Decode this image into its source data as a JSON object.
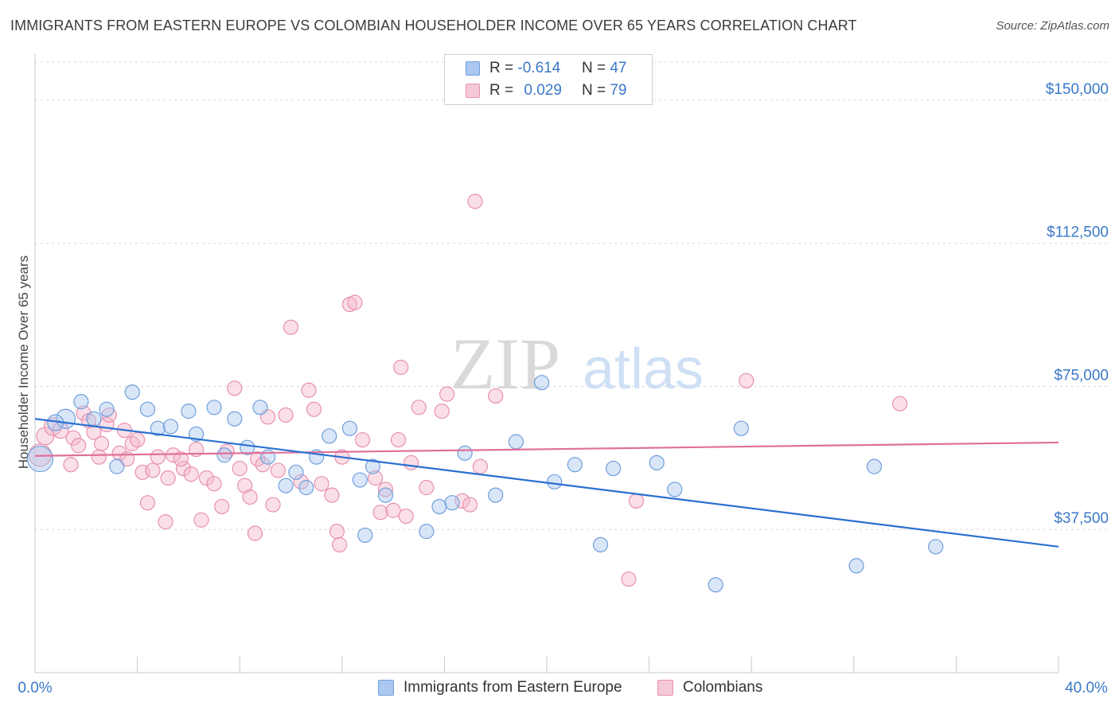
{
  "title": "IMMIGRANTS FROM EASTERN EUROPE VS COLOMBIAN HOUSEHOLDER INCOME OVER 65 YEARS CORRELATION CHART",
  "source": "Source: ZipAtlas.com",
  "watermark": {
    "zip": "ZIP",
    "atlas": "atlas"
  },
  "legend": {
    "rows": [
      {
        "r_label": "R =",
        "r_value": "-0.614",
        "n_label": "N =",
        "n_value": "47"
      },
      {
        "r_label": "R =",
        "r_value": "0.029",
        "n_label": "N =",
        "n_value": "79"
      }
    ]
  },
  "bottom_legend": {
    "series1": "Immigrants from Eastern Europe",
    "series2": "Colombians"
  },
  "colors": {
    "blue_fill": "#aac8f0",
    "blue_stroke": "#6f9fdc",
    "blue_line": "#2a6fd0",
    "pink_fill": "#f5b8cc",
    "pink_stroke": "#e890ae",
    "pink_line": "#e0709a",
    "tick_label": "#3a78c8"
  },
  "chart_data": {
    "type": "scatter",
    "title": "IMMIGRANTS FROM EASTERN EUROPE VS COLOMBIAN HOUSEHOLDER INCOME OVER 65 YEARS CORRELATION CHART",
    "xlabel": "",
    "ylabel": "Householder Income Over 65 years",
    "xlim": [
      0,
      40
    ],
    "ylim": [
      0,
      160000
    ],
    "x_tick_labels": [
      "0.0%",
      "40.0%"
    ],
    "y_ticks": [
      37500,
      75000,
      112500,
      150000
    ],
    "y_tick_labels": [
      "$37,500",
      "$75,000",
      "$112,500",
      "$150,000"
    ],
    "grid": "horizontal-dashed",
    "legend_position": "top-center",
    "series": [
      {
        "name": "Immigrants from Eastern Europe",
        "R": -0.614,
        "N": 47,
        "trend": {
          "x": [
            0,
            40
          ],
          "y": [
            66500,
            33000
          ]
        },
        "points": [
          [
            0.2,
            56000,
            16
          ],
          [
            1.2,
            66500,
            12
          ],
          [
            0.8,
            65500,
            10
          ],
          [
            1.8,
            71000,
            9
          ],
          [
            2.8,
            69000,
            9
          ],
          [
            2.3,
            66500,
            9
          ],
          [
            3.8,
            73500,
            9
          ],
          [
            4.4,
            69000,
            9
          ],
          [
            4.8,
            64000,
            9
          ],
          [
            5.3,
            64500,
            9
          ],
          [
            6.0,
            68500,
            9
          ],
          [
            6.3,
            62500,
            9
          ],
          [
            7.0,
            69500,
            9
          ],
          [
            7.8,
            66500,
            9
          ],
          [
            8.3,
            59000,
            9
          ],
          [
            8.8,
            69500,
            9
          ],
          [
            3.2,
            54000,
            9
          ],
          [
            7.4,
            57000,
            9
          ],
          [
            9.1,
            56500,
            9
          ],
          [
            9.8,
            49000,
            9
          ],
          [
            10.2,
            52500,
            9
          ],
          [
            10.6,
            48500,
            9
          ],
          [
            11.0,
            56500,
            9
          ],
          [
            11.5,
            62000,
            9
          ],
          [
            12.3,
            64000,
            9
          ],
          [
            12.7,
            50500,
            9
          ],
          [
            13.2,
            54000,
            9
          ],
          [
            13.7,
            46500,
            9
          ],
          [
            12.9,
            36000,
            9
          ],
          [
            15.3,
            37000,
            9
          ],
          [
            15.8,
            43500,
            9
          ],
          [
            16.3,
            44500,
            9
          ],
          [
            16.8,
            57500,
            9
          ],
          [
            18.0,
            46500,
            9
          ],
          [
            18.8,
            60500,
            9
          ],
          [
            19.8,
            76000,
            9
          ],
          [
            20.3,
            50000,
            9
          ],
          [
            21.1,
            54500,
            9
          ],
          [
            22.1,
            33500,
            9
          ],
          [
            22.6,
            53500,
            9
          ],
          [
            24.3,
            55000,
            9
          ],
          [
            25.0,
            48000,
            9
          ],
          [
            26.6,
            23000,
            9
          ],
          [
            27.6,
            64000,
            9
          ],
          [
            32.1,
            28000,
            9
          ],
          [
            32.8,
            54000,
            9
          ],
          [
            35.2,
            33000,
            9
          ]
        ]
      },
      {
        "name": "Colombians",
        "R": 0.029,
        "N": 79,
        "trend": {
          "x": [
            0,
            40
          ],
          "y": [
            56800,
            60300
          ]
        },
        "points": [
          [
            0.2,
            57000,
            14
          ],
          [
            0.4,
            62000,
            11
          ],
          [
            0.7,
            64500,
            11
          ],
          [
            1.0,
            63500,
            10
          ],
          [
            1.4,
            54500,
            9
          ],
          [
            1.5,
            61500,
            9
          ],
          [
            1.7,
            59500,
            9
          ],
          [
            1.9,
            68000,
            9
          ],
          [
            2.1,
            66000,
            9
          ],
          [
            2.3,
            63000,
            9
          ],
          [
            2.6,
            60000,
            9
          ],
          [
            2.8,
            65000,
            9
          ],
          [
            2.9,
            67500,
            9
          ],
          [
            3.3,
            57500,
            9
          ],
          [
            3.5,
            63500,
            9
          ],
          [
            3.8,
            60000,
            9
          ],
          [
            3.6,
            56000,
            9
          ],
          [
            4.0,
            61000,
            9
          ],
          [
            4.2,
            52500,
            9
          ],
          [
            4.4,
            44500,
            9
          ],
          [
            4.6,
            53000,
            9
          ],
          [
            4.8,
            56500,
            9
          ],
          [
            5.2,
            51000,
            9
          ],
          [
            5.4,
            57000,
            9
          ],
          [
            5.1,
            39500,
            9
          ],
          [
            5.8,
            53500,
            9
          ],
          [
            6.1,
            52000,
            9
          ],
          [
            5.7,
            56000,
            9
          ],
          [
            6.5,
            40000,
            9
          ],
          [
            6.7,
            51000,
            9
          ],
          [
            7.0,
            49500,
            9
          ],
          [
            7.3,
            43500,
            9
          ],
          [
            7.5,
            58000,
            9
          ],
          [
            7.8,
            74500,
            9
          ],
          [
            8.0,
            53500,
            9
          ],
          [
            8.2,
            49000,
            9
          ],
          [
            8.4,
            46000,
            9
          ],
          [
            8.7,
            56000,
            9
          ],
          [
            8.9,
            54500,
            9
          ],
          [
            8.6,
            36500,
            9
          ],
          [
            9.3,
            44000,
            9
          ],
          [
            9.5,
            53000,
            9
          ],
          [
            9.8,
            67500,
            9
          ],
          [
            10.0,
            90500,
            9
          ],
          [
            10.4,
            50000,
            9
          ],
          [
            10.7,
            74000,
            9
          ],
          [
            10.9,
            69000,
            9
          ],
          [
            11.2,
            49500,
            9
          ],
          [
            11.6,
            46500,
            9
          ],
          [
            11.8,
            37000,
            9
          ],
          [
            12.0,
            56500,
            9
          ],
          [
            12.3,
            96500,
            9
          ],
          [
            12.5,
            97000,
            9
          ],
          [
            11.9,
            33500,
            9
          ],
          [
            12.8,
            61000,
            9
          ],
          [
            13.3,
            51000,
            9
          ],
          [
            13.5,
            42000,
            9
          ],
          [
            13.7,
            48000,
            9
          ],
          [
            14.0,
            42500,
            9
          ],
          [
            14.3,
            80000,
            9
          ],
          [
            14.5,
            41000,
            9
          ],
          [
            14.7,
            55000,
            9
          ],
          [
            15.0,
            69500,
            9
          ],
          [
            15.3,
            48500,
            9
          ],
          [
            15.9,
            68500,
            9
          ],
          [
            16.1,
            73000,
            9
          ],
          [
            16.7,
            45000,
            9
          ],
          [
            17.0,
            44000,
            9
          ],
          [
            17.4,
            54000,
            9
          ],
          [
            17.2,
            123500,
            9
          ],
          [
            18.0,
            72500,
            9
          ],
          [
            23.2,
            24500,
            9
          ],
          [
            23.5,
            45000,
            9
          ],
          [
            27.8,
            76500,
            9
          ],
          [
            33.8,
            70500,
            9
          ],
          [
            14.2,
            61000,
            9
          ],
          [
            9.1,
            67000,
            9
          ],
          [
            2.5,
            56500,
            9
          ],
          [
            6.3,
            58500,
            9
          ]
        ]
      }
    ]
  }
}
